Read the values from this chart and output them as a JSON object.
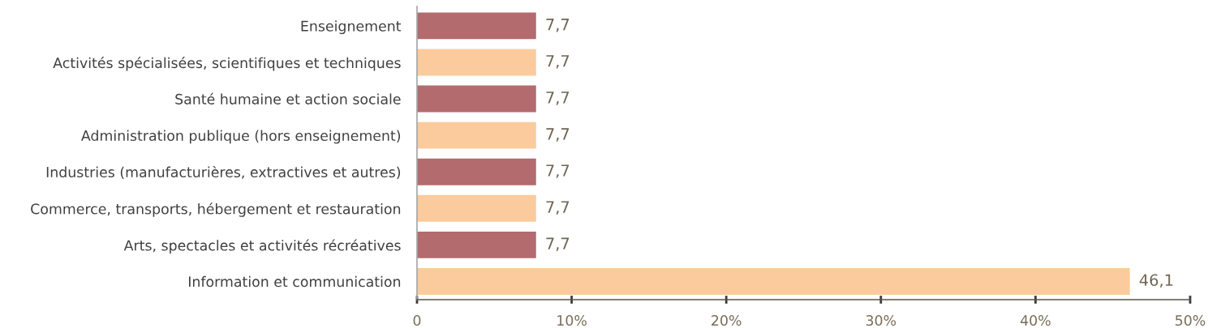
{
  "chart_data": {
    "type": "bar",
    "orientation": "horizontal",
    "categories": [
      "Enseignement",
      "Activités spécialisées, scientifiques et techniques",
      "Santé humaine et action sociale",
      "Administration publique (hors enseignement)",
      "Industries (manufacturières, extractives et autres)",
      "Commerce, transports, hébergement et restauration",
      "Arts, spectacles et activités récréatives",
      "Information et communication"
    ],
    "values": [
      7.7,
      7.7,
      7.7,
      7.7,
      7.7,
      7.7,
      7.7,
      46.1
    ],
    "colors": [
      "#b36b6e",
      "#fbcb9d",
      "#b36b6e",
      "#fbcb9d",
      "#b36b6e",
      "#fbcb9d",
      "#b36b6e",
      "#fbcb9d"
    ],
    "value_labels": [
      "7,7",
      "7,7",
      "7,7",
      "7,7",
      "7,7",
      "7,7",
      "7,7",
      "46,1"
    ],
    "xlim": [
      0,
      50
    ],
    "xticks": [
      0,
      {
        "value": 10,
        "label": "10%"
      },
      {
        "value": 20,
        "label": "20%"
      },
      {
        "value": 30,
        "label": "30%"
      },
      {
        "value": 40,
        "label": "40%"
      },
      {
        "value": 50,
        "label": "50%"
      }
    ],
    "grid": false,
    "legend": false
  }
}
